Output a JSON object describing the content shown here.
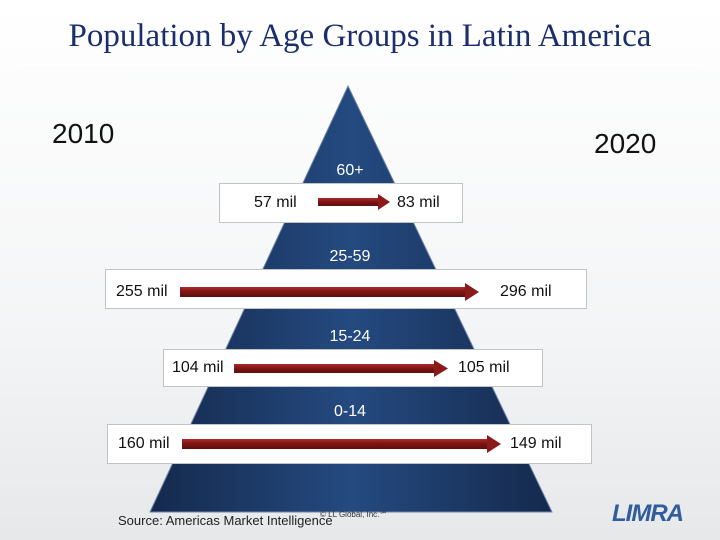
{
  "title": "Population by Age Groups in Latin America",
  "years": {
    "left": "2010",
    "right": "2020"
  },
  "groups": [
    {
      "label": "60+",
      "from": "57 mil",
      "to": "83 mil"
    },
    {
      "label": "25-59",
      "from": "255 mil",
      "to": "296 mil"
    },
    {
      "label": "15-24",
      "from": "104 mil",
      "to": "105 mil"
    },
    {
      "label": "0-14",
      "from": "160 mil",
      "to": "149 mil"
    }
  ],
  "footer": {
    "source": "Source: Americas Market Intelligence",
    "copyright": "© LL Global, Inc.℠",
    "logo": "LIMRA"
  },
  "colors": {
    "pyramid": "#1c3866",
    "arrow": "#8b1a1a",
    "title": "#1a2e6e"
  }
}
